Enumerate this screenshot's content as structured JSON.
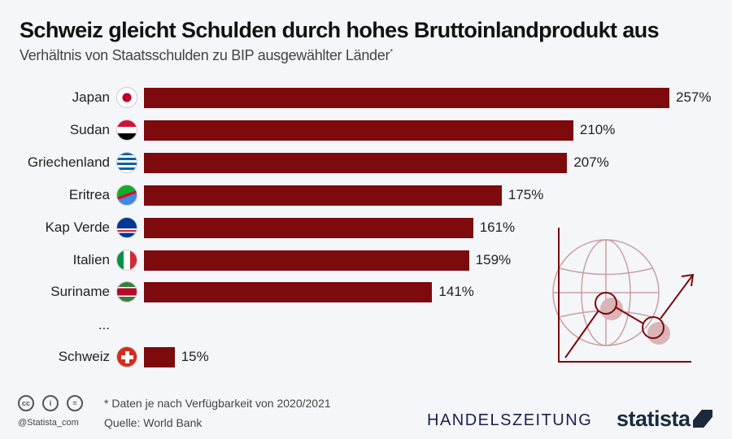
{
  "title": "Schweiz gleicht Schulden durch hohes Bruttoinlandprodukt aus",
  "subtitle": "Verhältnis von Staatsschulden zu BIP ausgewählter Länder",
  "subtitle_mark": "*",
  "colors": {
    "bar": "#7d0a0d",
    "illustration": "#c9a0a3",
    "illustration_dark": "#7d0a0d"
  },
  "chart_data": {
    "type": "bar",
    "orientation": "horizontal",
    "categories": [
      "Japan",
      "Sudan",
      "Griechenland",
      "Eritrea",
      "Kap Verde",
      "Italien",
      "Suriname",
      "...",
      "Schweiz"
    ],
    "values": [
      257,
      210,
      207,
      175,
      161,
      159,
      141,
      null,
      15
    ],
    "labels": [
      "257%",
      "210%",
      "207%",
      "175%",
      "161%",
      "159%",
      "141%",
      "",
      "15%"
    ],
    "xlim": [
      0,
      257
    ],
    "grid": false,
    "unit": "%"
  },
  "footer": {
    "note": "* Daten je nach Verfügbarkeit von 2020/2021",
    "source": "Quelle: World Bank",
    "handle": "@Statista_com",
    "partner": "HANDELSZEITUNG",
    "brand": "statista"
  }
}
